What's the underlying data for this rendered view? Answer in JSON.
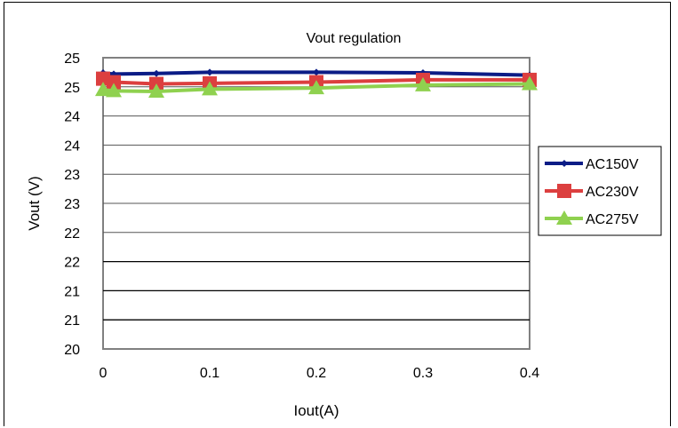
{
  "chart_data": {
    "type": "line",
    "title": "Vout regulation",
    "xlabel": "Iout(A)",
    "ylabel": "Vout (V)",
    "x": [
      0,
      0.01,
      0.05,
      0.1,
      0.2,
      0.3,
      0.4
    ],
    "xlim": [
      0,
      0.4
    ],
    "ylim": [
      20,
      25
    ],
    "x_ticks": [
      "0",
      "0.1",
      "0.2",
      "0.3",
      "0.4"
    ],
    "y_ticks": [
      "25",
      "25",
      "24",
      "24",
      "23",
      "23",
      "22",
      "22",
      "21",
      "21",
      "20"
    ],
    "grid": true,
    "legend_position": "right",
    "series": [
      {
        "name": "AC150V",
        "color": "#0b1c86",
        "marker": "diamond",
        "values": [
          24.74,
          24.72,
          24.73,
          24.75,
          24.75,
          24.74,
          24.7
        ]
      },
      {
        "name": "AC230V",
        "color": "#dc3f3f",
        "marker": "square",
        "values": [
          24.64,
          24.58,
          24.55,
          24.56,
          24.58,
          24.62,
          24.62
        ]
      },
      {
        "name": "AC275V",
        "color": "#8fd14f",
        "marker": "triangle",
        "values": [
          24.45,
          24.43,
          24.42,
          24.46,
          24.48,
          24.53,
          24.55
        ]
      }
    ]
  }
}
